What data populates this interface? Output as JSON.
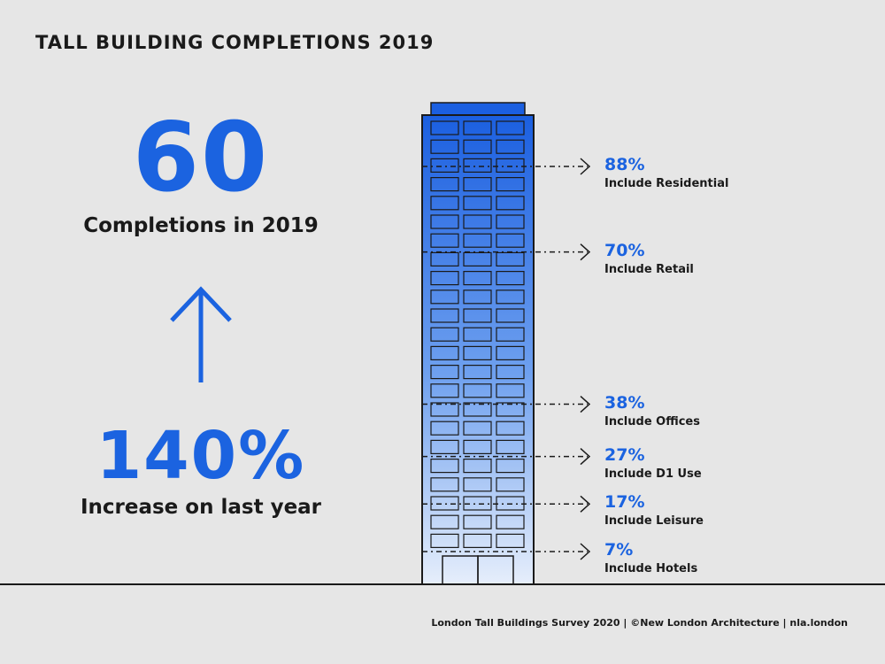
{
  "title": "TALL BUILDING COMPLETIONS 2019",
  "completions": {
    "value": "60",
    "label": "Completions in 2019"
  },
  "increase": {
    "value": "140%",
    "label": "Increase on last year"
  },
  "chart_data": {
    "type": "table",
    "categories": [
      "Include Residential",
      "Include Retail",
      "Include Offices",
      "Include D1 Use",
      "Include Leisure",
      "Include Hotels"
    ],
    "values": [
      88,
      70,
      38,
      27,
      17,
      7
    ],
    "value_labels": [
      "88%",
      "70%",
      "38%",
      "27%",
      "17%",
      "7%"
    ],
    "unit": "%"
  },
  "colors": {
    "accent": "#1b63e0",
    "background": "#e6e6e6",
    "text": "#1a1a1a"
  },
  "source": "London Tall Buildings Survey 2020 | ©New London Architecture | nla.london"
}
